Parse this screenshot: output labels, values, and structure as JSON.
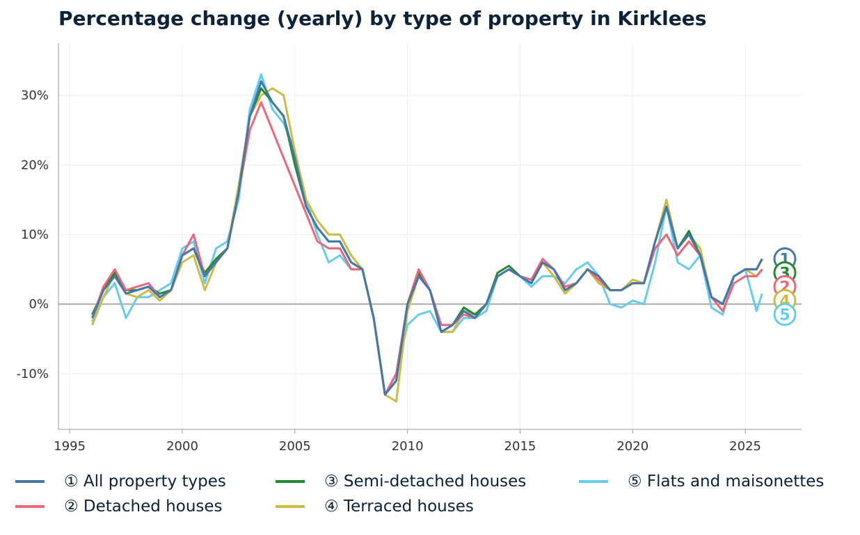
{
  "title": "Percentage change (yearly) by type of property in Kirklees",
  "chart_data": {
    "type": "line",
    "title": "Percentage change (yearly) by type of property in Kirklees",
    "xlabel": "",
    "ylabel": "",
    "xlim": [
      1994.5,
      2027.5
    ],
    "ylim": [
      -18,
      37.5
    ],
    "x_ticks": [
      1995,
      2000,
      2005,
      2010,
      2015,
      2020,
      2025
    ],
    "x_tick_labels": [
      "1995",
      "2000",
      "2005",
      "2010",
      "2015",
      "2020",
      "2025"
    ],
    "y_ticks": [
      -10,
      0,
      10,
      20,
      30
    ],
    "y_tick_labels": [
      "-10%",
      "0%",
      "10%",
      "20%",
      "30%"
    ],
    "grid": true,
    "legend": "bottom",
    "x": [
      1996,
      1996.5,
      1997,
      1997.5,
      1998,
      1998.5,
      1999,
      1999.5,
      2000,
      2000.5,
      2001,
      2001.5,
      2002,
      2002.5,
      2003,
      2003.5,
      2004,
      2004.5,
      2005,
      2005.5,
      2006,
      2006.5,
      2007,
      2007.5,
      2008,
      2008.5,
      2009,
      2009.5,
      2010,
      2010.5,
      2011,
      2011.5,
      2012,
      2012.5,
      2013,
      2013.5,
      2014,
      2014.5,
      2015,
      2015.5,
      2016,
      2016.5,
      2017,
      2017.5,
      2018,
      2018.5,
      2019,
      2019.5,
      2020,
      2020.5,
      2021,
      2021.5,
      2022,
      2022.5,
      2023,
      2023.5,
      2024,
      2024.5,
      2025,
      2025.5,
      2025.75
    ],
    "series": [
      {
        "name": "All property types",
        "marker": "1",
        "color": "#4477AA",
        "values": [
          -2,
          2,
          4,
          1.5,
          2,
          2.5,
          1,
          2,
          7,
          8,
          4,
          6,
          8,
          16,
          27,
          32,
          29,
          27,
          21,
          14,
          11,
          9,
          9,
          6,
          5,
          -2,
          -13,
          -11,
          0,
          4,
          2,
          -4,
          -3,
          -1,
          -2,
          0,
          4,
          5,
          4,
          3,
          6,
          5,
          2,
          3,
          5,
          4,
          2,
          2,
          3,
          3,
          9,
          14,
          8,
          10,
          7,
          1,
          0,
          4,
          5,
          5,
          6.5
        ]
      },
      {
        "name": "Detached houses",
        "marker": "2",
        "color": "#EE6677",
        "values": [
          -2,
          2.5,
          5,
          2,
          2.5,
          3,
          1,
          2,
          7,
          10,
          4,
          6,
          8,
          16,
          25,
          29,
          25,
          21,
          17,
          13,
          9,
          8,
          8,
          5,
          5,
          -2,
          -13,
          -10,
          0,
          5,
          2,
          -3,
          -3,
          -1.5,
          -2,
          0,
          4,
          5,
          4,
          3.5,
          6.5,
          5,
          2.5,
          3,
          5,
          3.5,
          2,
          2,
          3,
          3,
          8,
          10,
          7,
          9,
          7,
          1,
          -1,
          3,
          4,
          4,
          5
        ]
      },
      {
        "name": "Semi-detached houses",
        "marker": "3",
        "color": "#228833",
        "values": [
          -1.5,
          2,
          4.5,
          2,
          2,
          2.5,
          1.5,
          2,
          7,
          8,
          4.5,
          6.5,
          8,
          16,
          27,
          31,
          29,
          27,
          20,
          14,
          11,
          9,
          9,
          6,
          5,
          -2,
          -13,
          -11,
          0,
          4.5,
          2,
          -4,
          -3,
          -0.5,
          -1.5,
          0,
          4.5,
          5.5,
          4,
          3,
          6,
          5,
          2,
          3,
          5,
          4,
          2,
          2,
          3,
          3,
          9,
          14,
          8,
          10.5,
          7,
          1,
          0,
          4,
          5,
          5,
          6.5
        ]
      },
      {
        "name": "Terraced houses",
        "marker": "4",
        "color": "#CCBB44",
        "values": [
          -3,
          1,
          4.5,
          1.5,
          1,
          2,
          0.5,
          2,
          6,
          7,
          2,
          6,
          8,
          17,
          27,
          30,
          31,
          30,
          22,
          15,
          12,
          10,
          10,
          7,
          5,
          -2,
          -13,
          -14,
          -1,
          4,
          2,
          -4,
          -4,
          -1,
          -1.5,
          0,
          4,
          5,
          4,
          3,
          6,
          4,
          1.5,
          3,
          5,
          3,
          2,
          2,
          3.5,
          3,
          9,
          15,
          8,
          10,
          8,
          1,
          0,
          4,
          5,
          4,
          5
        ]
      },
      {
        "name": "Flats and maisonettes",
        "marker": "5",
        "color": "#66CCEE",
        "values": [
          -2.5,
          1,
          3,
          -2,
          1,
          1,
          2,
          3,
          8,
          9,
          3,
          8,
          9,
          15,
          28,
          33,
          28,
          26,
          22,
          15,
          10,
          6,
          7,
          5,
          5,
          -2,
          -13,
          -10,
          -3,
          -1.5,
          -1,
          -4,
          -4,
          -2,
          -2,
          -1,
          4,
          5,
          4,
          2.5,
          4,
          4,
          3,
          5,
          6,
          4,
          0,
          -0.5,
          0.5,
          0,
          6,
          14,
          6,
          5,
          7,
          -0.5,
          -1.5,
          4,
          5,
          -1,
          1.5
        ]
      }
    ]
  },
  "legend": [
    {
      "label": "① All property types"
    },
    {
      "label": "② Detached houses"
    },
    {
      "label": "③ Semi-detached houses"
    },
    {
      "label": "④ Terraced houses"
    },
    {
      "label": "⑤ Flats and maisonettes"
    }
  ]
}
